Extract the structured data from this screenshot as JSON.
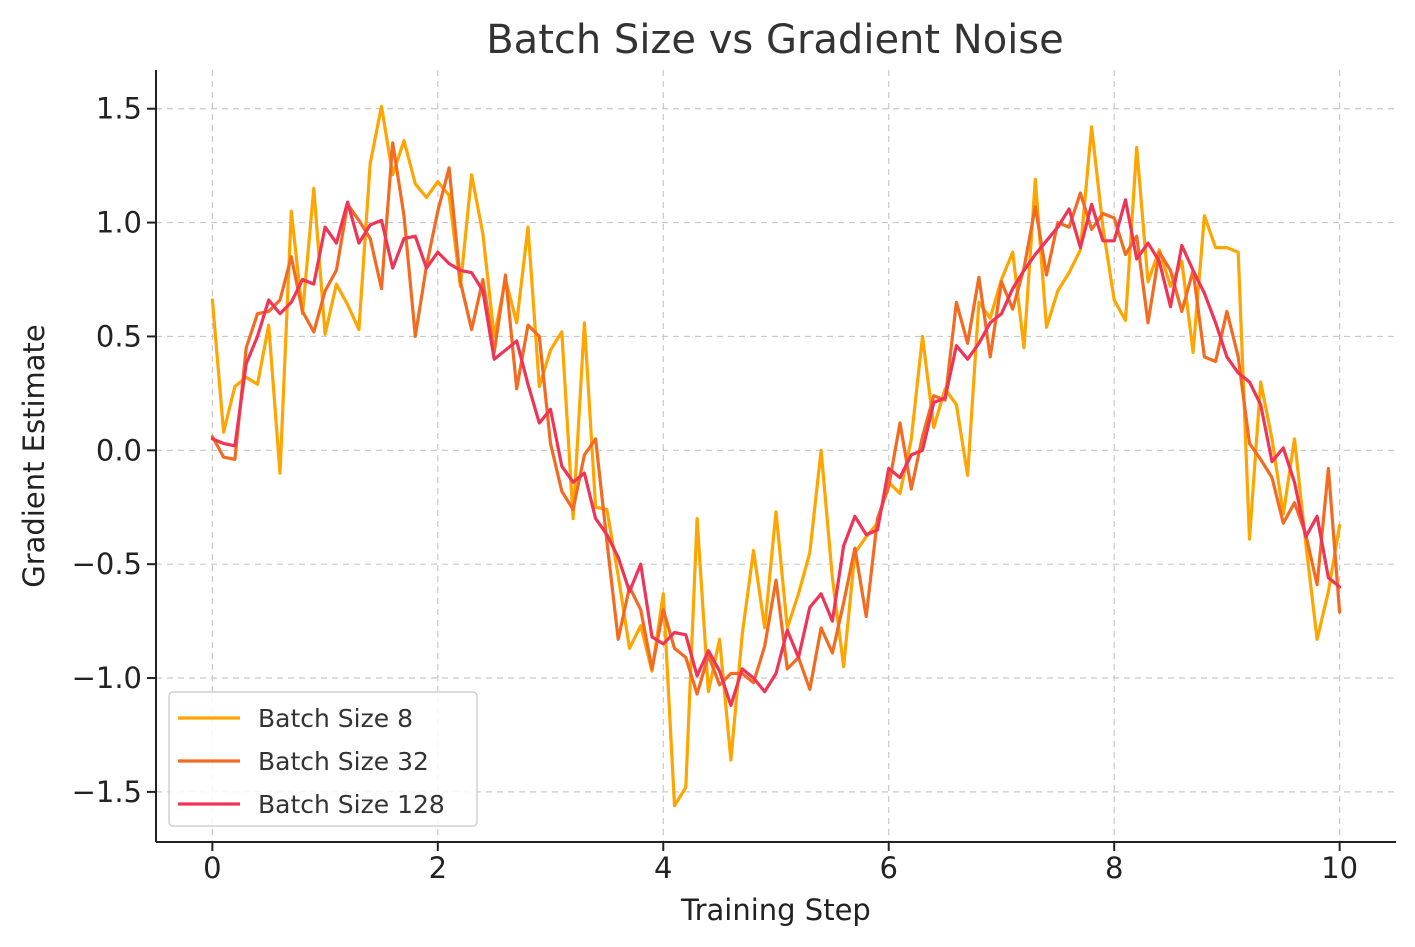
{
  "chart_data": {
    "type": "line",
    "title": "Batch Size vs Gradient Noise",
    "xlabel": "Training Step",
    "ylabel": "Gradient Estimate",
    "xlim": [
      -0.5,
      10.5
    ],
    "ylim": [
      -1.72,
      1.67
    ],
    "xticks": [
      0,
      2,
      4,
      6,
      8,
      10
    ],
    "xtick_labels": [
      "0",
      "2",
      "4",
      "6",
      "8",
      "10"
    ],
    "yticks": [
      -1.5,
      -1.0,
      -0.5,
      0.0,
      0.5,
      1.0,
      1.5
    ],
    "ytick_labels": [
      "−1.5",
      "−1.0",
      "−0.5",
      "0.0",
      "0.5",
      "1.0",
      "1.5"
    ],
    "grid": true,
    "legend_position": "lower-left",
    "x": [
      0.0,
      0.1,
      0.2,
      0.3,
      0.4,
      0.5,
      0.6,
      0.7,
      0.8,
      0.9,
      1.0,
      1.1,
      1.2,
      1.3,
      1.4,
      1.5,
      1.6,
      1.7,
      1.8,
      1.9,
      2.0,
      2.1,
      2.2,
      2.3,
      2.4,
      2.5,
      2.6,
      2.7,
      2.8,
      2.9,
      3.0,
      3.1,
      3.2,
      3.3,
      3.4,
      3.5,
      3.6,
      3.7,
      3.8,
      3.9,
      4.0,
      4.1,
      4.2,
      4.3,
      4.4,
      4.5,
      4.6,
      4.7,
      4.8,
      4.9,
      5.0,
      5.1,
      5.2,
      5.3,
      5.4,
      5.5,
      5.6,
      5.7,
      5.8,
      5.9,
      6.0,
      6.1,
      6.2,
      6.3,
      6.4,
      6.5,
      6.6,
      6.7,
      6.8,
      6.9,
      7.0,
      7.1,
      7.2,
      7.3,
      7.4,
      7.5,
      7.6,
      7.7,
      7.8,
      7.9,
      8.0,
      8.1,
      8.2,
      8.3,
      8.4,
      8.5,
      8.6,
      8.7,
      8.8,
      8.9,
      9.0,
      9.1,
      9.2,
      9.3,
      9.4,
      9.5,
      9.6,
      9.7,
      9.8,
      9.9,
      10.0
    ],
    "series": [
      {
        "name": "Batch Size 8",
        "color": "#FFA500",
        "values": [
          0.66,
          0.08,
          0.28,
          0.32,
          0.29,
          0.55,
          -0.1,
          1.05,
          0.6,
          1.15,
          0.51,
          0.73,
          0.64,
          0.53,
          1.26,
          1.51,
          1.21,
          1.36,
          1.17,
          1.11,
          1.18,
          1.12,
          0.72,
          1.21,
          0.95,
          0.5,
          0.75,
          0.56,
          0.98,
          0.28,
          0.44,
          0.52,
          -0.3,
          0.56,
          -0.25,
          -0.26,
          -0.55,
          -0.87,
          -0.77,
          -0.97,
          -0.63,
          -1.56,
          -1.48,
          -0.3,
          -1.06,
          -0.83,
          -1.36,
          -0.81,
          -0.44,
          -0.78,
          -0.27,
          -0.78,
          -0.63,
          -0.45,
          0.0,
          -0.56,
          -0.95,
          -0.45,
          -0.38,
          -0.32,
          -0.14,
          -0.19,
          0.05,
          0.5,
          0.1,
          0.27,
          0.2,
          -0.11,
          0.65,
          0.58,
          0.75,
          0.87,
          0.45,
          1.19,
          0.54,
          0.7,
          0.78,
          0.88,
          1.42,
          0.98,
          0.66,
          0.57,
          1.33,
          0.74,
          0.88,
          0.72,
          0.83,
          0.43,
          1.03,
          0.89,
          0.89,
          0.87,
          -0.39,
          0.3,
          0.05,
          -0.28,
          0.05,
          -0.41,
          -0.83,
          -0.62,
          -0.33
        ]
      },
      {
        "name": "Batch Size 32",
        "color": "#F36B21",
        "values": [
          0.06,
          -0.03,
          -0.04,
          0.45,
          0.6,
          0.61,
          0.66,
          0.85,
          0.61,
          0.52,
          0.7,
          0.79,
          1.08,
          1.01,
          0.93,
          0.71,
          1.35,
          1.03,
          0.5,
          0.81,
          1.05,
          1.24,
          0.74,
          0.53,
          0.75,
          0.43,
          0.77,
          0.27,
          0.55,
          0.5,
          0.03,
          -0.18,
          -0.26,
          -0.02,
          0.05,
          -0.4,
          -0.83,
          -0.6,
          -0.7,
          -0.96,
          -0.7,
          -0.87,
          -0.91,
          -1.07,
          -0.9,
          -1.03,
          -0.98,
          -0.98,
          -1.02,
          -0.86,
          -0.57,
          -0.96,
          -0.91,
          -1.05,
          -0.78,
          -0.89,
          -0.67,
          -0.43,
          -0.73,
          -0.3,
          -0.16,
          0.12,
          -0.17,
          0.06,
          0.24,
          0.22,
          0.65,
          0.47,
          0.76,
          0.41,
          0.74,
          0.62,
          0.8,
          1.07,
          0.77,
          1.0,
          0.98,
          1.13,
          0.97,
          1.04,
          1.02,
          0.86,
          0.94,
          0.56,
          0.87,
          0.79,
          0.61,
          0.79,
          0.41,
          0.39,
          0.61,
          0.41,
          0.03,
          -0.04,
          -0.12,
          -0.32,
          -0.23,
          -0.37,
          -0.59,
          -0.08,
          -0.71
        ]
      },
      {
        "name": "Batch Size 128",
        "color": "#EE3558",
        "values": [
          0.05,
          0.03,
          0.02,
          0.38,
          0.5,
          0.66,
          0.6,
          0.65,
          0.75,
          0.73,
          0.98,
          0.91,
          1.09,
          0.91,
          0.99,
          1.01,
          0.8,
          0.93,
          0.94,
          0.8,
          0.87,
          0.82,
          0.79,
          0.78,
          0.7,
          0.4,
          0.44,
          0.48,
          0.29,
          0.12,
          0.18,
          -0.07,
          -0.14,
          -0.1,
          -0.3,
          -0.37,
          -0.47,
          -0.62,
          -0.5,
          -0.82,
          -0.85,
          -0.8,
          -0.81,
          -0.99,
          -0.88,
          -0.97,
          -1.12,
          -0.96,
          -1.0,
          -1.06,
          -0.98,
          -0.79,
          -0.91,
          -0.69,
          -0.63,
          -0.75,
          -0.42,
          -0.29,
          -0.37,
          -0.35,
          -0.08,
          -0.12,
          -0.02,
          0.0,
          0.21,
          0.23,
          0.46,
          0.4,
          0.47,
          0.56,
          0.6,
          0.71,
          0.79,
          0.86,
          0.92,
          0.98,
          1.06,
          0.89,
          1.08,
          0.92,
          0.92,
          1.1,
          0.84,
          0.91,
          0.83,
          0.63,
          0.9,
          0.79,
          0.69,
          0.56,
          0.41,
          0.34,
          0.3,
          0.2,
          -0.05,
          0.01,
          -0.14,
          -0.38,
          -0.29,
          -0.56,
          -0.6
        ]
      }
    ]
  }
}
